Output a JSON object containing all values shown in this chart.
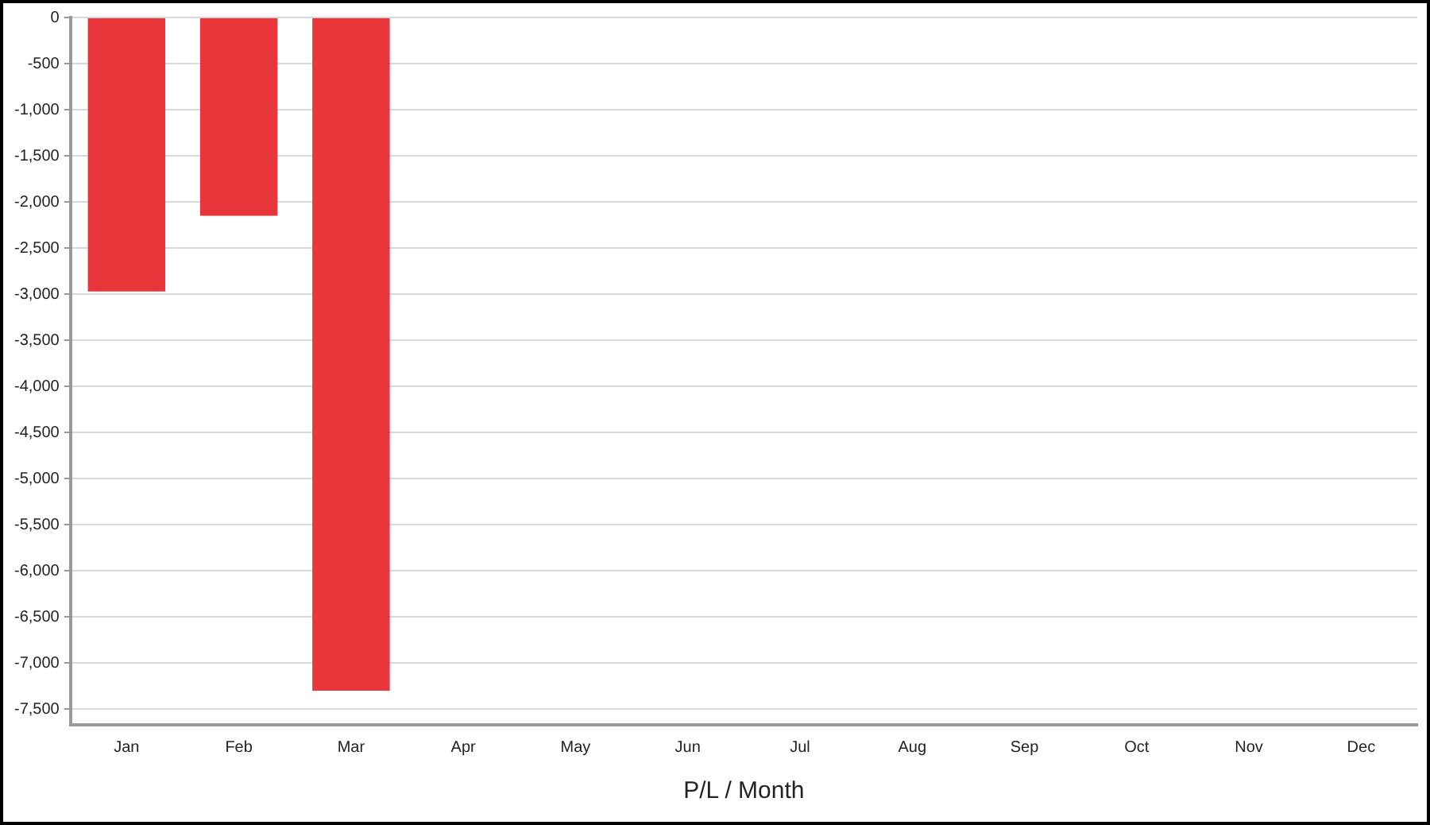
{
  "chart_data": {
    "type": "bar",
    "xlabel": "P/L / Month",
    "categories": [
      "Jan",
      "Feb",
      "Mar",
      "Apr",
      "May",
      "Jun",
      "Jul",
      "Aug",
      "Sep",
      "Oct",
      "Nov",
      "Dec"
    ],
    "values": [
      -2970,
      -2150,
      -7300,
      null,
      null,
      null,
      null,
      null,
      null,
      null,
      null,
      null
    ],
    "color": "#e8363b",
    "ylim": [
      -7670,
      0
    ],
    "yticks": [
      {
        "value": 0,
        "label": "0"
      },
      {
        "value": -500,
        "label": "-500"
      },
      {
        "value": -1000,
        "label": "-1,000"
      },
      {
        "value": -1500,
        "label": "-1,500"
      },
      {
        "value": -2000,
        "label": "-2,000"
      },
      {
        "value": -2500,
        "label": "-2,500"
      },
      {
        "value": -3000,
        "label": "-3,000"
      },
      {
        "value": -3500,
        "label": "-3,500"
      },
      {
        "value": -4000,
        "label": "-4,000"
      },
      {
        "value": -4500,
        "label": "-4,500"
      },
      {
        "value": -5000,
        "label": "-5,000"
      },
      {
        "value": -5500,
        "label": "-5,500"
      },
      {
        "value": -6000,
        "label": "-6,000"
      },
      {
        "value": -6500,
        "label": "-6,500"
      },
      {
        "value": -7000,
        "label": "-7,000"
      },
      {
        "value": -7500,
        "label": "-7,500"
      }
    ],
    "grid": "y",
    "legend": false
  }
}
